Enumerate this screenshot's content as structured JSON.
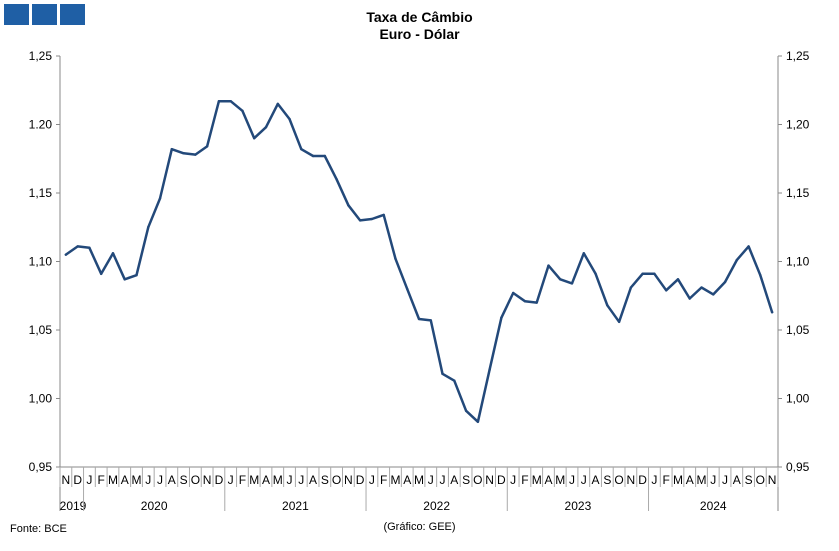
{
  "header": {
    "title": "Taxa de Câmbio",
    "subtitle": "Euro - Dólar"
  },
  "footer": {
    "source": "Fonte: BCE",
    "credit": "(Gráfico: GEE)"
  },
  "logo": {
    "color": "#1f5fa5"
  },
  "chart_data": {
    "type": "line",
    "title": "Taxa de Câmbio",
    "subtitle": "Euro - Dólar",
    "xlabel": "",
    "ylabel": "",
    "ylim": [
      0.95,
      1.25
    ],
    "grid": false,
    "legend": "none",
    "y_ticks_left": [
      "1,25",
      "1.20",
      "1,15",
      "1,10",
      "1,05",
      "1,00",
      "0,95"
    ],
    "y_ticks_right": [
      "1,25",
      "1,20",
      "1,15",
      "1,10",
      "1,05",
      "1,00",
      "0,95"
    ],
    "y_tick_values": [
      1.25,
      1.2,
      1.15,
      1.1,
      1.05,
      1.0,
      0.95
    ],
    "month_labels": [
      "N",
      "D",
      "J",
      "F",
      "M",
      "A",
      "M",
      "J",
      "J",
      "A",
      "S",
      "O",
      "N",
      "D",
      "J",
      "F",
      "M",
      "A",
      "M",
      "J",
      "J",
      "A",
      "S",
      "O",
      "N",
      "D",
      "J",
      "F",
      "M",
      "A",
      "M",
      "J",
      "J",
      "A",
      "S",
      "O",
      "N",
      "D",
      "J",
      "F",
      "M",
      "A",
      "M",
      "J",
      "J",
      "A",
      "S",
      "O",
      "N",
      "D",
      "J",
      "F",
      "M",
      "A",
      "M",
      "J",
      "J",
      "A",
      "S",
      "O",
      "N"
    ],
    "years": [
      {
        "label": "2019",
        "start": 0,
        "end": 1
      },
      {
        "label": "2020",
        "start": 2,
        "end": 13
      },
      {
        "label": "2021",
        "start": 14,
        "end": 25
      },
      {
        "label": "2022",
        "start": 26,
        "end": 37
      },
      {
        "label": "2023",
        "start": 38,
        "end": 49
      },
      {
        "label": "2024",
        "start": 50,
        "end": 60
      }
    ],
    "line_color": "#23497a",
    "series": [
      {
        "values": [
          1.105,
          1.111,
          1.11,
          1.091,
          1.106,
          1.087,
          1.09,
          1.125,
          1.146,
          1.182,
          1.179,
          1.178,
          1.184,
          1.217,
          1.217,
          1.21,
          1.19,
          1.198,
          1.215,
          1.204,
          1.182,
          1.177,
          1.177,
          1.16,
          1.141,
          1.13,
          1.131,
          1.134,
          1.102,
          1.08,
          1.058,
          1.057,
          1.018,
          1.013,
          0.991,
          0.983,
          1.021,
          1.059,
          1.077,
          1.071,
          1.07,
          1.097,
          1.087,
          1.084,
          1.106,
          1.091,
          1.068,
          1.056,
          1.081,
          1.091,
          1.091,
          1.079,
          1.087,
          1.073,
          1.081,
          1.076,
          1.085,
          1.101,
          1.111,
          1.09,
          1.063
        ]
      }
    ]
  }
}
